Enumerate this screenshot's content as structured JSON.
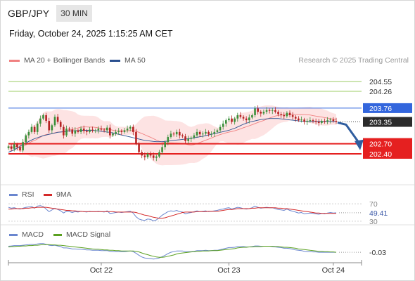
{
  "header": {
    "symbol": "GBP/JPY",
    "timeframe": "30 MIN",
    "datetime": "Friday, October 24, 2025 1:15:25 AM CET",
    "copyright": "Research © 2025 Trading Central"
  },
  "colors": {
    "ma20": "#f08080",
    "band_fill": "#fde3e3",
    "ma50": "#2a4f8f",
    "resistance_green": "#9ccc65",
    "resistance_blue": "#3366dd",
    "support_red": "#e52020",
    "current_price_bg": "#2b2b2b",
    "arrow": "#2f5d9f",
    "candle_up": "#3a8f3a",
    "candle_down": "#b52222",
    "rsi": "#6a86cf",
    "rsi_ma": "#d42a2a",
    "macd": "#6a86cf",
    "macd_signal": "#5aa020"
  },
  "chart_data": [
    {
      "type": "candlestick",
      "legend": [
        "MA 20 + Bollinger Bands",
        "MA 50"
      ],
      "x_ticks": [
        "Oct 22",
        "Oct 23",
        "Oct 24"
      ],
      "ylim": [
        201.5,
        204.95
      ],
      "levels": [
        {
          "value": 204.55,
          "label": "204.55",
          "kind": "resistance_green"
        },
        {
          "value": 204.26,
          "label": "204.26",
          "kind": "resistance_green"
        },
        {
          "value": 203.76,
          "label": "203.76",
          "kind": "resistance_blue"
        },
        {
          "value": 203.35,
          "label": "203.35",
          "kind": "current"
        },
        {
          "value": 202.7,
          "label": "202.70",
          "kind": "support"
        },
        {
          "value": 202.4,
          "label": "202.40",
          "kind": "support"
        }
      ],
      "close": [
        202.62,
        202.55,
        202.68,
        202.6,
        202.5,
        202.75,
        202.95,
        203.05,
        203.2,
        203.05,
        203.3,
        203.45,
        203.55,
        203.38,
        203.1,
        203.25,
        203.5,
        203.35,
        203.2,
        202.95,
        203.15,
        203.12,
        203.0,
        203.1,
        203.05,
        203.15,
        203.08,
        203.05,
        203.12,
        203.1,
        203.1,
        203.15,
        203.12,
        203.1,
        203.18,
        202.95,
        203.0,
        203.05,
        203.08,
        203.05,
        203.1,
        203.15,
        203.2,
        203.05,
        202.7,
        202.45,
        202.35,
        202.3,
        202.4,
        202.35,
        202.28,
        202.32,
        202.45,
        202.6,
        202.75,
        202.9,
        203.0,
        202.98,
        203.05,
        202.95,
        202.92,
        202.78,
        202.85,
        202.88,
        202.95,
        203.05,
        202.98,
        203.0,
        203.05,
        202.98,
        203.0,
        203.05,
        203.1,
        203.2,
        203.3,
        203.4,
        203.45,
        203.35,
        203.45,
        203.55,
        203.5,
        203.45,
        203.4,
        203.48,
        203.55,
        203.75,
        203.65,
        203.6,
        203.65,
        203.7,
        203.68,
        203.7,
        203.65,
        203.58,
        203.55,
        203.52,
        203.62,
        203.55,
        203.5,
        203.45,
        203.4,
        203.42,
        203.35,
        203.38,
        203.4,
        203.38,
        203.35,
        203.32,
        203.38,
        203.36,
        203.4,
        203.42,
        203.38,
        203.35
      ],
      "ma50": [
        202.45,
        202.48,
        202.52,
        202.57,
        202.62,
        202.67,
        202.72,
        202.77,
        202.81,
        202.85,
        202.88,
        202.91,
        202.94,
        202.96,
        202.98,
        203.0,
        203.02,
        203.04,
        203.05,
        203.06,
        203.07,
        203.08,
        203.08,
        203.09,
        203.09,
        203.1,
        203.1,
        203.1,
        203.1,
        203.1,
        203.09,
        203.08,
        203.07,
        203.06,
        203.05,
        203.04,
        203.02,
        203.0,
        202.98,
        202.96,
        202.94,
        202.92,
        202.9,
        202.88,
        202.86,
        202.84,
        202.82,
        202.8,
        202.79,
        202.78,
        202.77,
        202.76,
        202.76,
        202.76,
        202.77,
        202.78,
        202.79,
        202.8,
        202.81,
        202.82,
        202.83,
        202.84,
        202.85,
        202.86,
        202.88,
        202.89,
        202.91,
        202.92,
        202.94,
        202.96,
        202.98,
        203.0,
        203.02,
        203.04,
        203.06,
        203.08,
        203.1,
        203.13,
        203.16,
        203.2,
        203.24,
        203.28,
        203.31,
        203.34,
        203.36,
        203.38,
        203.4,
        203.42,
        203.43,
        203.44,
        203.45,
        203.45,
        203.45,
        203.45,
        203.44,
        203.43,
        203.42,
        203.41,
        203.4,
        203.39,
        203.38,
        203.37,
        203.37,
        203.36,
        203.36,
        203.36,
        203.36,
        203.36,
        203.36,
        203.36,
        203.36,
        203.36,
        203.36,
        203.36
      ]
    },
    {
      "type": "line",
      "legend": [
        "RSI",
        "9MA"
      ],
      "ylim": [
        25,
        80
      ],
      "levels": [
        {
          "value": 70,
          "label": "70"
        },
        {
          "value": 30,
          "label": "30"
        }
      ],
      "last_value": "49.41",
      "rsi": [
        62,
        60,
        61,
        59,
        58,
        60,
        62,
        63,
        64,
        60,
        65,
        66,
        64,
        58,
        52,
        56,
        60,
        57,
        54,
        49,
        53,
        52,
        50,
        52,
        51,
        53,
        52,
        51,
        53,
        52,
        52,
        53,
        52,
        51,
        54,
        48,
        49,
        50,
        51,
        50,
        51,
        52,
        53,
        49,
        40,
        35,
        33,
        32,
        35,
        34,
        31,
        33,
        38,
        44,
        48,
        52,
        54,
        53,
        55,
        52,
        51,
        47,
        49,
        50,
        52,
        54,
        52,
        53,
        54,
        52,
        53,
        54,
        55,
        57,
        58,
        60,
        61,
        58,
        60,
        62,
        61,
        59,
        58,
        59,
        61,
        65,
        62,
        60,
        61,
        62,
        61,
        61,
        59,
        57,
        56,
        55,
        58,
        55,
        53,
        51,
        49,
        50,
        47,
        48,
        49,
        48,
        47,
        46,
        48,
        47,
        49,
        50,
        49,
        49.41
      ],
      "ma9": [
        58,
        58,
        59,
        59,
        59,
        59,
        60,
        60,
        61,
        61,
        62,
        62,
        62,
        62,
        61,
        60,
        59,
        58,
        57,
        56,
        55,
        55,
        54,
        54,
        53,
        53,
        52,
        52,
        52,
        52,
        52,
        52,
        52,
        52,
        52,
        52,
        52,
        51,
        51,
        51,
        51,
        51,
        51,
        51,
        50,
        48,
        46,
        44,
        43,
        41,
        39,
        38,
        37,
        37,
        38,
        40,
        42,
        44,
        46,
        48,
        50,
        51,
        51,
        51,
        51,
        52,
        52,
        52,
        52,
        53,
        53,
        53,
        53,
        54,
        55,
        56,
        57,
        57,
        58,
        59,
        59,
        59,
        59,
        59,
        60,
        60,
        61,
        61,
        61,
        61,
        61,
        61,
        61,
        60,
        60,
        59,
        59,
        58,
        57,
        56,
        55,
        54,
        53,
        52,
        51,
        50,
        49,
        49,
        48,
        48,
        48,
        48,
        48,
        48
      ]
    },
    {
      "type": "line",
      "legend": [
        "MACD",
        "MACD Signal"
      ],
      "ylim": [
        -0.3,
        0.35
      ],
      "last_value": "-0.03",
      "macd": [
        0.15,
        0.16,
        0.17,
        0.17,
        0.17,
        0.18,
        0.19,
        0.2,
        0.21,
        0.2,
        0.22,
        0.23,
        0.23,
        0.21,
        0.18,
        0.17,
        0.18,
        0.16,
        0.14,
        0.1,
        0.1,
        0.09,
        0.07,
        0.07,
        0.06,
        0.06,
        0.05,
        0.04,
        0.04,
        0.03,
        0.03,
        0.03,
        0.02,
        0.02,
        0.02,
        0.0,
        -0.01,
        -0.01,
        -0.01,
        -0.01,
        -0.01,
        0.0,
        0.01,
        -0.01,
        -0.06,
        -0.12,
        -0.17,
        -0.2,
        -0.21,
        -0.22,
        -0.23,
        -0.22,
        -0.2,
        -0.16,
        -0.12,
        -0.07,
        -0.03,
        -0.01,
        0.01,
        0.01,
        0.01,
        -0.01,
        -0.01,
        -0.01,
        0.0,
        0.02,
        0.02,
        0.02,
        0.03,
        0.02,
        0.02,
        0.03,
        0.03,
        0.05,
        0.07,
        0.09,
        0.11,
        0.11,
        0.12,
        0.14,
        0.14,
        0.14,
        0.13,
        0.13,
        0.14,
        0.16,
        0.16,
        0.15,
        0.15,
        0.15,
        0.15,
        0.14,
        0.13,
        0.12,
        0.11,
        0.09,
        0.09,
        0.08,
        0.06,
        0.04,
        0.03,
        0.02,
        0.0,
        -0.01,
        -0.01,
        -0.02,
        -0.02,
        -0.03,
        -0.03,
        -0.03,
        -0.03,
        -0.03,
        -0.03,
        -0.03
      ],
      "signal": [
        0.13,
        0.14,
        0.14,
        0.15,
        0.15,
        0.16,
        0.16,
        0.17,
        0.17,
        0.18,
        0.18,
        0.19,
        0.2,
        0.2,
        0.2,
        0.19,
        0.19,
        0.18,
        0.18,
        0.17,
        0.16,
        0.15,
        0.14,
        0.13,
        0.12,
        0.11,
        0.1,
        0.09,
        0.08,
        0.07,
        0.06,
        0.06,
        0.05,
        0.04,
        0.04,
        0.03,
        0.03,
        0.02,
        0.02,
        0.01,
        0.01,
        0.01,
        0.01,
        0.01,
        0.0,
        -0.02,
        -0.05,
        -0.08,
        -0.1,
        -0.13,
        -0.15,
        -0.17,
        -0.18,
        -0.18,
        -0.17,
        -0.15,
        -0.13,
        -0.11,
        -0.08,
        -0.06,
        -0.05,
        -0.04,
        -0.03,
        -0.02,
        -0.01,
        0.0,
        0.0,
        0.01,
        0.01,
        0.01,
        0.02,
        0.02,
        0.02,
        0.03,
        0.04,
        0.05,
        0.06,
        0.07,
        0.08,
        0.1,
        0.11,
        0.12,
        0.12,
        0.13,
        0.13,
        0.14,
        0.14,
        0.14,
        0.15,
        0.15,
        0.15,
        0.15,
        0.14,
        0.14,
        0.13,
        0.12,
        0.12,
        0.11,
        0.1,
        0.09,
        0.07,
        0.06,
        0.05,
        0.04,
        0.03,
        0.02,
        0.01,
        0.0,
        0.0,
        -0.01,
        -0.01,
        -0.02,
        -0.02,
        -0.03
      ]
    }
  ]
}
